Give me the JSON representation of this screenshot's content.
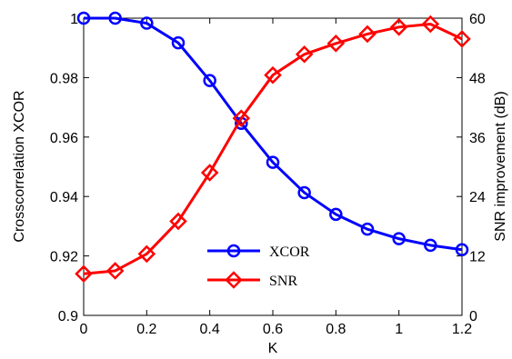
{
  "chart_data": {
    "type": "line",
    "xlabel": "K",
    "ylabel_left": "Crosscorrelation XCOR",
    "ylabel_right": "SNR improvement (dB)",
    "xlim": [
      0,
      1.2
    ],
    "ylim_left": [
      0.9,
      1.0
    ],
    "ylim_right": [
      0,
      60
    ],
    "x_ticks": [
      "0",
      "0.2",
      "0.4",
      "0.6",
      "0.8",
      "1",
      "1.2"
    ],
    "y_ticks_left": [
      "0.9",
      "0.92",
      "0.94",
      "0.96",
      "0.98",
      "1"
    ],
    "y_ticks_right": [
      "0",
      "12",
      "24",
      "36",
      "48",
      "60"
    ],
    "x": [
      0,
      0.1,
      0.2,
      0.3,
      0.4,
      0.5,
      0.6,
      0.7,
      0.8,
      0.9,
      1.0,
      1.1,
      1.2
    ],
    "grid": false,
    "legend_position": "bottom-center",
    "series": [
      {
        "name": "XCOR",
        "axis": "left",
        "color": "#0000ff",
        "marker": "circle",
        "values": [
          1.0,
          1.0,
          0.9983,
          0.9917,
          0.979,
          0.9646,
          0.9515,
          0.9413,
          0.934,
          0.929,
          0.9258,
          0.9236,
          0.9221
        ]
      },
      {
        "name": "SNR",
        "axis": "right",
        "color": "#ff0000",
        "marker": "diamond",
        "values": [
          8.4,
          9.0,
          12.4,
          19.0,
          28.8,
          39.8,
          48.5,
          52.7,
          54.9,
          56.8,
          58.2,
          58.8,
          55.8
        ]
      }
    ]
  }
}
